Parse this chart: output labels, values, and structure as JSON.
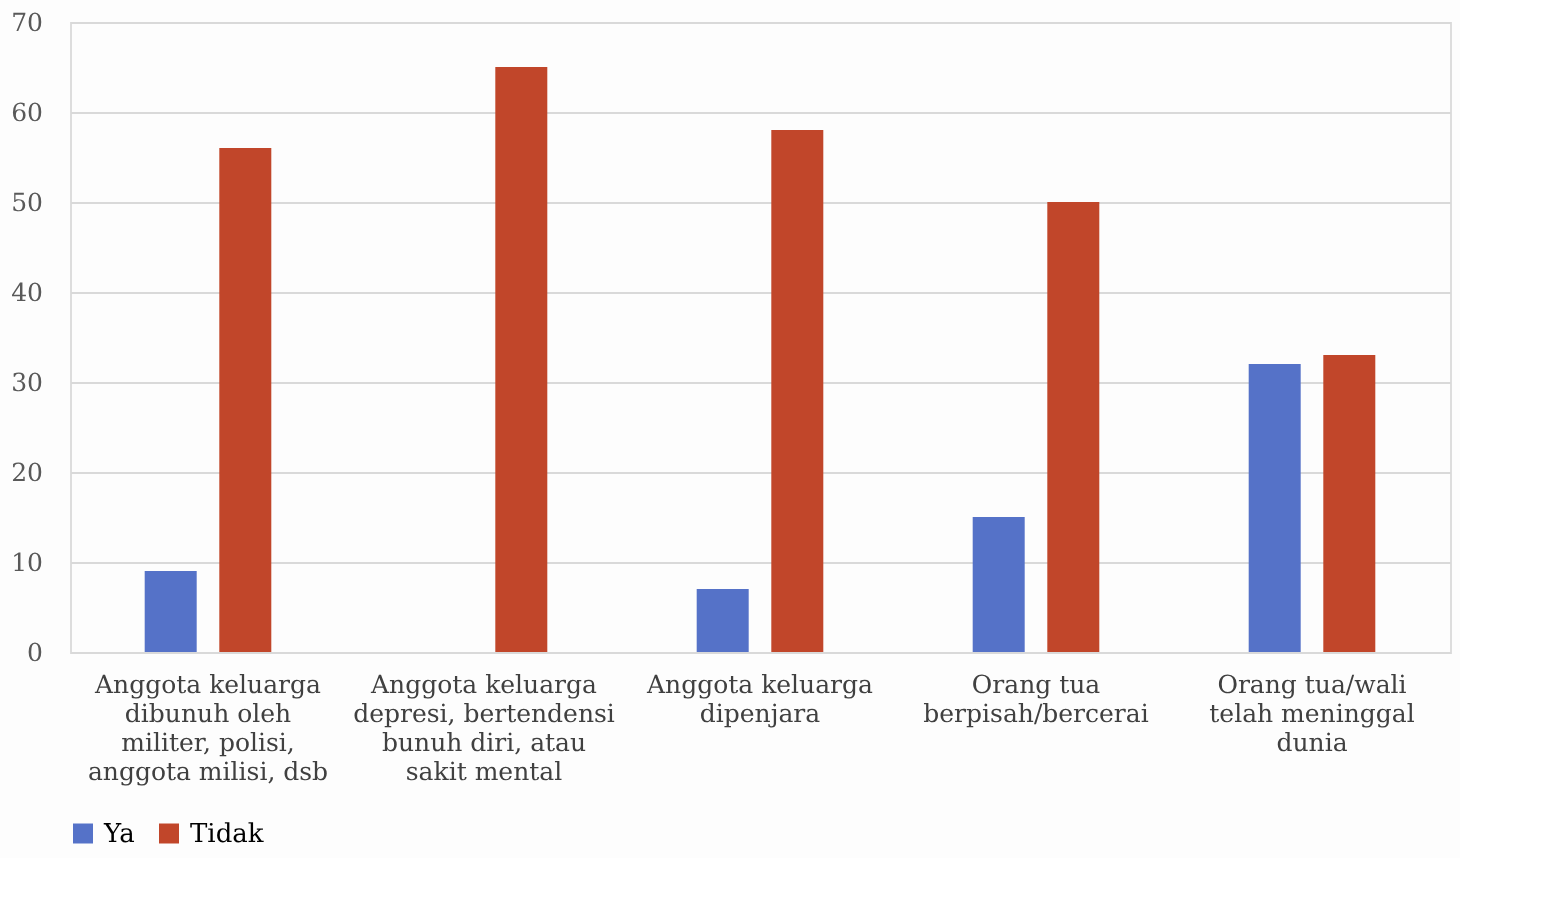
{
  "chart_data": {
    "type": "bar",
    "categories": [
      "Anggota keluarga\ndibunuh oleh\nmiliter, polisi,\nanggota milisi, dsb",
      "Anggota keluarga\ndepresi, bertendensi\nbunuh diri, atau\nsakit mental",
      "Anggota keluarga\ndipenjara",
      "Orang tua\nberpisah/bercerai",
      "Orang tua/wali\ntelah meninggal\ndunia"
    ],
    "series": [
      {
        "name": "Ya",
        "color": "#5572c8",
        "values": [
          9,
          0,
          7,
          15,
          32
        ]
      },
      {
        "name": "Tidak",
        "color": "#c1462a",
        "values": [
          56,
          65,
          58,
          50,
          33
        ]
      }
    ],
    "ylim": [
      0,
      70
    ],
    "yticks": [
      0,
      10,
      20,
      30,
      40,
      50,
      60,
      70
    ],
    "grid": "y",
    "legend": "bottom"
  }
}
